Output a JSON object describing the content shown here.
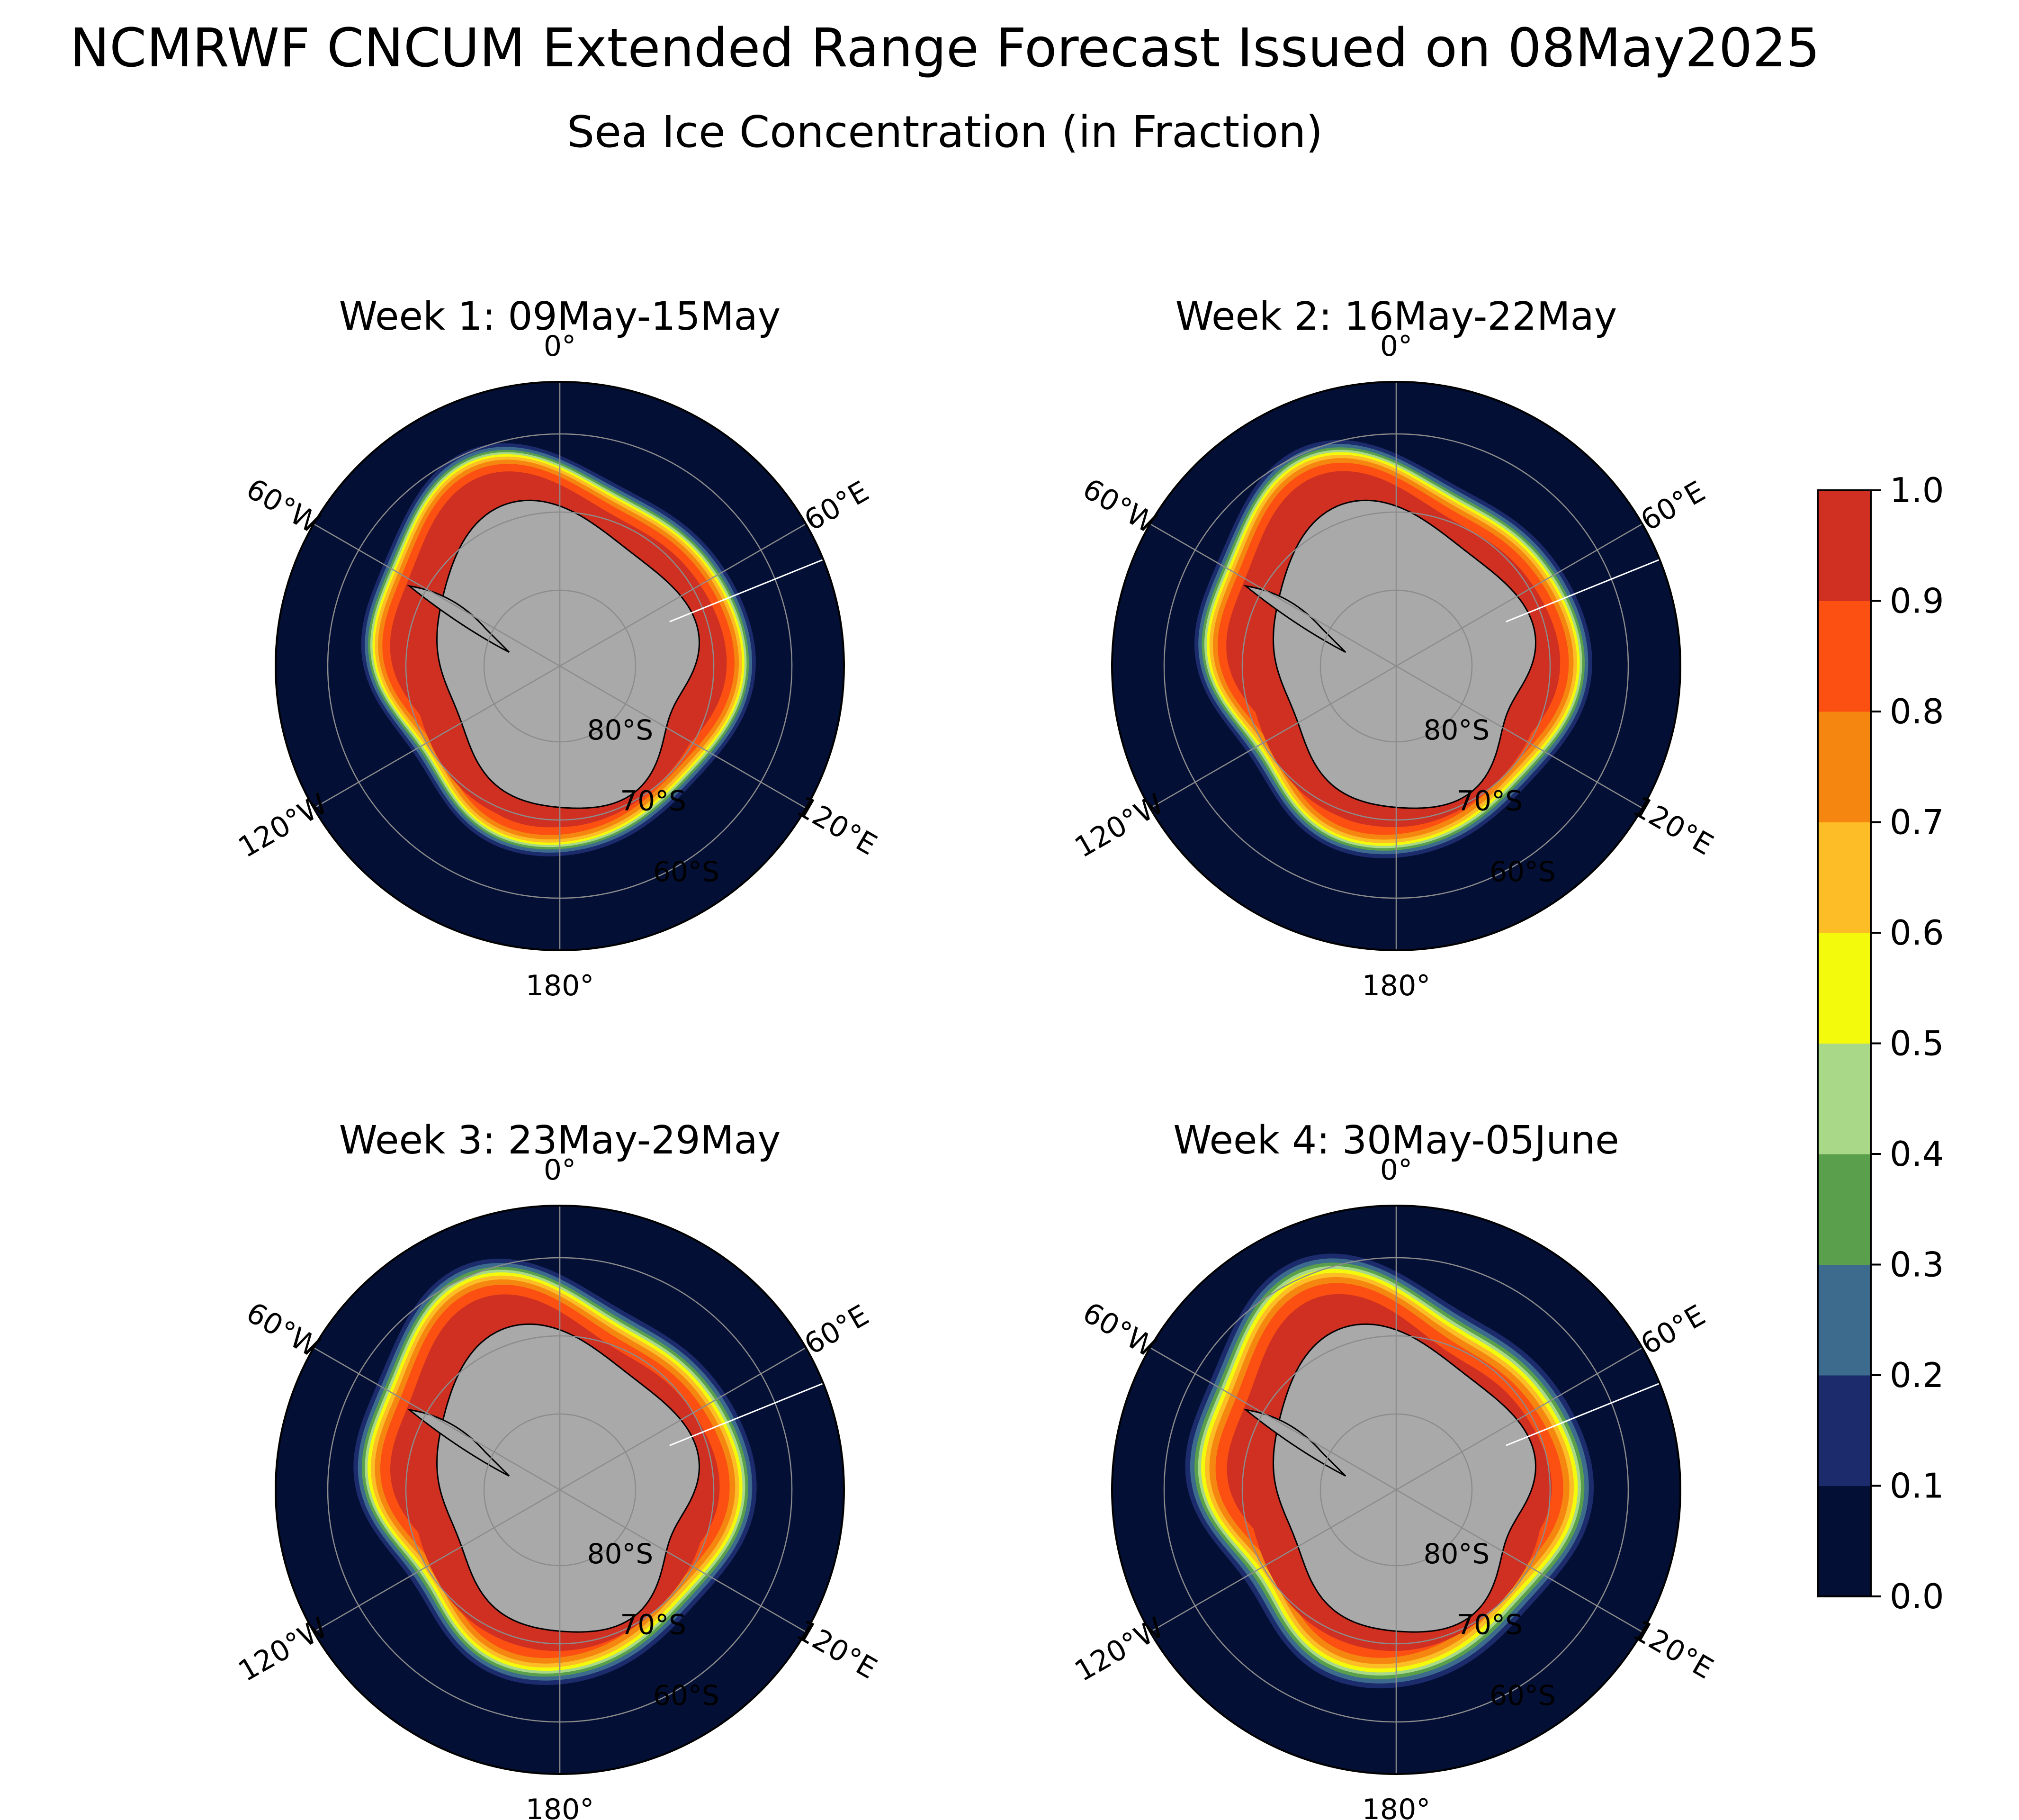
{
  "title": "NCMRWF CNCUM Extended Range Forecast Issued on 08May2025",
  "subtitle": "Sea Ice Concentration (in Fraction)",
  "lon_labels": [
    "0°",
    "60°E",
    "120°E",
    "180°",
    "120°W",
    "60°W"
  ],
  "lat_labels": [
    "80°S",
    "70°S",
    "60°S"
  ],
  "panels": [
    {
      "title": "Week 1: 09May-15May",
      "edge_spread": 0.2
    },
    {
      "title": "Week 2: 16May-22May",
      "edge_spread": 0.35
    },
    {
      "title": "Week 3: 23May-29May",
      "edge_spread": 0.6
    },
    {
      "title": "Week 4: 30May-05June",
      "edge_spread": 0.85
    }
  ],
  "colorbar": {
    "ticks": [
      "0.0",
      "0.1",
      "0.2",
      "0.3",
      "0.4",
      "0.5",
      "0.6",
      "0.7",
      "0.8",
      "0.9",
      "1.0"
    ],
    "colors": [
      "#030f35",
      "#1b2b6c",
      "#3c6b8e",
      "#5aa04c",
      "#a8d888",
      "#f4fa0c",
      "#fcbd26",
      "#f58610",
      "#fc5012",
      "#cf3021"
    ]
  },
  "colors": {
    "ocean": "#030f35",
    "land": "#a9a9a9",
    "shelf": "#ffffff",
    "grid": "#8c8c8c"
  }
}
